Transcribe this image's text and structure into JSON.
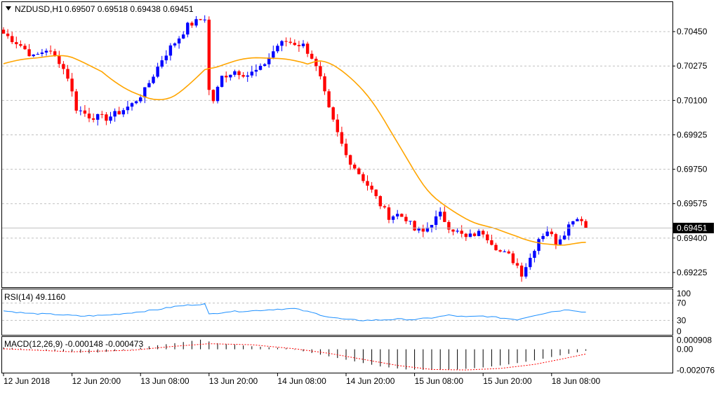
{
  "header": {
    "symbol": "NZDUSD,H1",
    "ohlc": "0.69507 0.69518 0.69438 0.69451",
    "current_price": "0.69451"
  },
  "colors": {
    "bull": "#0000ff",
    "bear": "#ff0000",
    "ma": "#ffa500",
    "rsi": "#1e90ff",
    "macd_signal": "#ff0000",
    "hist": "#000000"
  },
  "price_axis": {
    "min": 0.6915,
    "max": 0.706,
    "ticks": [
      {
        "value": 0.7045,
        "label": "0.70450"
      },
      {
        "value": 0.70275,
        "label": "0.70275"
      },
      {
        "value": 0.701,
        "label": "0.70100"
      },
      {
        "value": 0.69925,
        "label": "0.69925"
      },
      {
        "value": 0.6975,
        "label": "0.69750"
      },
      {
        "value": 0.69575,
        "label": "0.69575"
      },
      {
        "value": 0.694,
        "label": "0.69400"
      },
      {
        "value": 0.69225,
        "label": "0.69225"
      }
    ]
  },
  "time_axis": [
    {
      "index": 0,
      "label": "12 Jun 2018"
    },
    {
      "index": 16,
      "label": "12 Jun 20:00"
    },
    {
      "index": 32,
      "label": "13 Jun 08:00"
    },
    {
      "index": 48,
      "label": "13 Jun 20:00"
    },
    {
      "index": 64,
      "label": "14 Jun 08:00"
    },
    {
      "index": 80,
      "label": "14 Jun 20:00"
    },
    {
      "index": 96,
      "label": "15 Jun 08:00"
    },
    {
      "index": 112,
      "label": "15 Jun 20:00"
    },
    {
      "index": 128,
      "label": "18 Jun 08:00"
    }
  ],
  "rsi": {
    "label": "RSI(14) 49.1160",
    "ticks": [
      {
        "value": 100,
        "label": "100"
      },
      {
        "value": 70,
        "label": "70"
      },
      {
        "value": 30,
        "label": "30"
      },
      {
        "value": 0,
        "label": "0"
      }
    ]
  },
  "macd": {
    "label": "MACD(12,26,9) -0.000148 -0.000473",
    "min": -0.00225,
    "max": 0.00115,
    "ticks": [
      {
        "value": 0.000908,
        "label": "0.000908"
      },
      {
        "value": 0.0,
        "label": "0.00"
      },
      {
        "value": -0.002076,
        "label": "-0.002076"
      }
    ]
  },
  "chart_data": {
    "type": "candlestick",
    "ma_start": 0.7028,
    "ma_end": 0.69555,
    "close_path": [
      [
        0,
        0.7044
      ],
      [
        4,
        0.7038
      ],
      [
        7,
        0.7032
      ],
      [
        10,
        0.7036
      ],
      [
        13,
        0.703
      ],
      [
        15,
        0.7022
      ],
      [
        17,
        0.7006
      ],
      [
        20,
        0.7002
      ],
      [
        24,
        0.7001
      ],
      [
        27,
        0.7004
      ],
      [
        30,
        0.7008
      ],
      [
        33,
        0.7015
      ],
      [
        35,
        0.7023
      ],
      [
        37,
        0.7031
      ],
      [
        39,
        0.7037
      ],
      [
        41,
        0.7042
      ],
      [
        43,
        0.7048
      ],
      [
        45,
        0.705
      ],
      [
        47,
        0.7052
      ],
      [
        48,
        0.7015
      ],
      [
        49,
        0.701
      ],
      [
        51,
        0.7022
      ],
      [
        54,
        0.7025
      ],
      [
        57,
        0.7023
      ],
      [
        60,
        0.7026
      ],
      [
        62,
        0.7032
      ],
      [
        64,
        0.7038
      ],
      [
        66,
        0.704
      ],
      [
        68,
        0.7039
      ],
      [
        70,
        0.7038
      ],
      [
        72,
        0.7032
      ],
      [
        74,
        0.7021
      ],
      [
        76,
        0.7005
      ],
      [
        78,
        0.6993
      ],
      [
        80,
        0.6982
      ],
      [
        82,
        0.6976
      ],
      [
        84,
        0.697
      ],
      [
        86,
        0.6964
      ],
      [
        88,
        0.6957
      ],
      [
        90,
        0.6951
      ],
      [
        92,
        0.6952
      ],
      [
        94,
        0.695
      ],
      [
        96,
        0.6944
      ],
      [
        98,
        0.6943
      ],
      [
        100,
        0.6948
      ],
      [
        102,
        0.6952
      ],
      [
        104,
        0.6946
      ],
      [
        106,
        0.6943
      ],
      [
        108,
        0.694
      ],
      [
        110,
        0.6942
      ],
      [
        112,
        0.6943
      ],
      [
        114,
        0.6938
      ],
      [
        116,
        0.6933
      ],
      [
        118,
        0.6931
      ],
      [
        120,
        0.6926
      ],
      [
        121,
        0.6922
      ],
      [
        123,
        0.693
      ],
      [
        125,
        0.694
      ],
      [
        127,
        0.6944
      ],
      [
        129,
        0.6938
      ],
      [
        131,
        0.6943
      ],
      [
        133,
        0.695
      ],
      [
        135,
        0.695
      ],
      [
        136,
        0.69451
      ]
    ],
    "rsi_path": [
      [
        0,
        52
      ],
      [
        6,
        46
      ],
      [
        12,
        44
      ],
      [
        18,
        40
      ],
      [
        24,
        42
      ],
      [
        30,
        48
      ],
      [
        36,
        55
      ],
      [
        40,
        62
      ],
      [
        44,
        66
      ],
      [
        47,
        68
      ],
      [
        48,
        44
      ],
      [
        52,
        50
      ],
      [
        58,
        52
      ],
      [
        64,
        56
      ],
      [
        68,
        57
      ],
      [
        72,
        48
      ],
      [
        76,
        38
      ],
      [
        80,
        32
      ],
      [
        84,
        30
      ],
      [
        88,
        31
      ],
      [
        92,
        33
      ],
      [
        96,
        32
      ],
      [
        100,
        36
      ],
      [
        104,
        42
      ],
      [
        108,
        38
      ],
      [
        112,
        40
      ],
      [
        116,
        36
      ],
      [
        120,
        32
      ],
      [
        124,
        42
      ],
      [
        128,
        50
      ],
      [
        132,
        55
      ],
      [
        136,
        49
      ]
    ],
    "macd_hist_path": [
      [
        0,
        0.0002
      ],
      [
        10,
        -0.0001
      ],
      [
        20,
        -0.0004
      ],
      [
        28,
        -0.0001
      ],
      [
        34,
        0.0003
      ],
      [
        40,
        0.0006
      ],
      [
        46,
        0.00095
      ],
      [
        50,
        0.0006
      ],
      [
        58,
        0.0003
      ],
      [
        66,
        0.0001
      ],
      [
        70,
        -0.0002
      ],
      [
        76,
        -0.0007
      ],
      [
        82,
        -0.0012
      ],
      [
        88,
        -0.0017
      ],
      [
        94,
        -0.002
      ],
      [
        100,
        -0.00205
      ],
      [
        106,
        -0.002
      ],
      [
        112,
        -0.0018
      ],
      [
        118,
        -0.0015
      ],
      [
        124,
        -0.0011
      ],
      [
        130,
        -0.0006
      ],
      [
        136,
        -0.00015
      ]
    ],
    "macd_signal_path": [
      [
        0,
        5e-05
      ],
      [
        16,
        -0.00025
      ],
      [
        30,
        -0.0001
      ],
      [
        40,
        0.0003
      ],
      [
        48,
        0.00055
      ],
      [
        58,
        0.00045
      ],
      [
        68,
        5e-05
      ],
      [
        76,
        -0.0004
      ],
      [
        84,
        -0.001
      ],
      [
        92,
        -0.0016
      ],
      [
        100,
        -0.002
      ],
      [
        108,
        -0.00205
      ],
      [
        116,
        -0.0019
      ],
      [
        124,
        -0.0015
      ],
      [
        130,
        -0.001
      ],
      [
        136,
        -0.00047
      ]
    ]
  }
}
